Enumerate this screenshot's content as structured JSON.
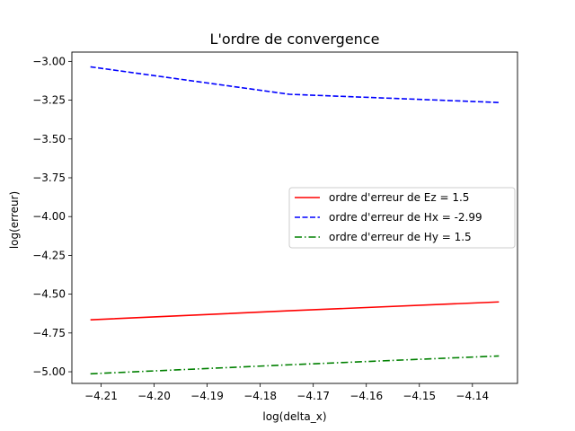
{
  "chart_data": {
    "type": "line",
    "title": "L'ordre de convergence",
    "xlabel": "log(delta_x)",
    "ylabel": "log(erreur)",
    "xlim": [
      -4.2155,
      -4.1315
    ],
    "ylim": [
      -5.075,
      -2.94
    ],
    "xticks": [
      -4.21,
      -4.2,
      -4.19,
      -4.18,
      -4.17,
      -4.16,
      -4.15,
      -4.14
    ],
    "xtick_labels": [
      "−4.21",
      "−4.20",
      "−4.19",
      "−4.18",
      "−4.17",
      "−4.16",
      "−4.15",
      "−4.14"
    ],
    "yticks": [
      -3.0,
      -3.25,
      -3.5,
      -3.75,
      -4.0,
      -4.25,
      -4.5,
      -4.75,
      -5.0
    ],
    "ytick_labels": [
      "−3.00",
      "−3.25",
      "−3.50",
      "−3.75",
      "−4.00",
      "−4.25",
      "−4.50",
      "−4.75",
      "−5.00"
    ],
    "grid": false,
    "legend_position": "center-right",
    "series": [
      {
        "name": "ordre d'erreur de Ez = 1.5",
        "color": "#ff0000",
        "style": "solid",
        "x": [
          -4.212,
          -4.1745,
          -4.135
        ],
        "y": [
          -4.665,
          -4.607,
          -4.55
        ]
      },
      {
        "name": "ordre d'erreur de Hx = -2.99",
        "color": "#0000ff",
        "style": "dashed",
        "x": [
          -4.212,
          -4.1745,
          -4.135
        ],
        "y": [
          -3.035,
          -3.212,
          -3.265
        ]
      },
      {
        "name": "ordre d'erreur de Hy = 1.5",
        "color": "#008000",
        "style": "dashdot",
        "x": [
          -4.212,
          -4.1745,
          -4.135
        ],
        "y": [
          -5.013,
          -4.955,
          -4.898
        ]
      }
    ]
  }
}
